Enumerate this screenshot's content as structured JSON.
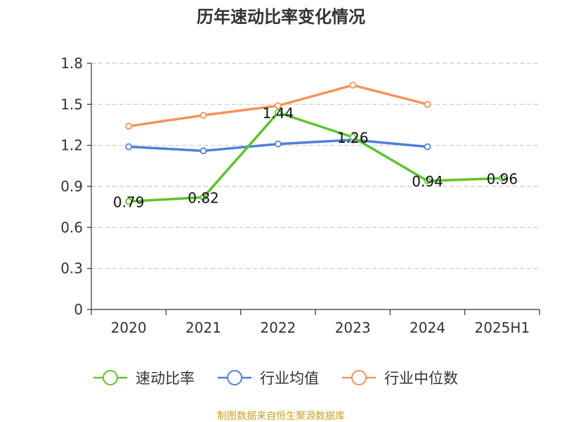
{
  "chart_data": {
    "type": "line",
    "title": "历年速动比率变化情况",
    "categories": [
      "2020",
      "2021",
      "2022",
      "2023",
      "2024",
      "2025H1"
    ],
    "ylim": [
      0,
      1.8
    ],
    "yticks": [
      "0",
      "0.3",
      "0.6",
      "0.9",
      "1.2",
      "1.5",
      "1.8"
    ],
    "grid": true,
    "legend_position": "bottom",
    "series": [
      {
        "name": "速动比率",
        "color": "#5cc42a",
        "values": [
          0.79,
          0.82,
          1.44,
          1.26,
          0.94,
          0.96
        ],
        "labels": [
          "0.79",
          "0.82",
          "1.44",
          "1.26",
          "0.94",
          "0.96"
        ]
      },
      {
        "name": "行业均值",
        "color": "#4e7fd9",
        "values": [
          1.19,
          1.16,
          1.21,
          1.24,
          1.19,
          null
        ]
      },
      {
        "name": "行业中位数",
        "color": "#f5935a",
        "values": [
          1.34,
          1.42,
          1.49,
          1.64,
          1.5,
          null
        ]
      }
    ]
  },
  "footer": "制图数据来自恒生聚源数据库"
}
